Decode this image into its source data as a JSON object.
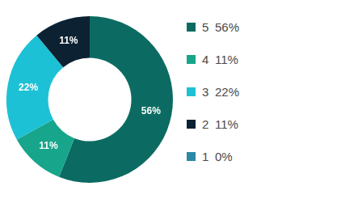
{
  "chart_data": {
    "type": "doughnut",
    "categories": [
      "5",
      "4",
      "3",
      "2",
      "1"
    ],
    "values": [
      56,
      11,
      22,
      11,
      0
    ],
    "value_labels": [
      "56%",
      "11%",
      "22%",
      "11%",
      "0%"
    ],
    "colors": [
      "#0b6b62",
      "#17a58b",
      "#1dc1d5",
      "#0c2233",
      "#2a8aa6"
    ],
    "legend": "right",
    "data_labels": true
  }
}
